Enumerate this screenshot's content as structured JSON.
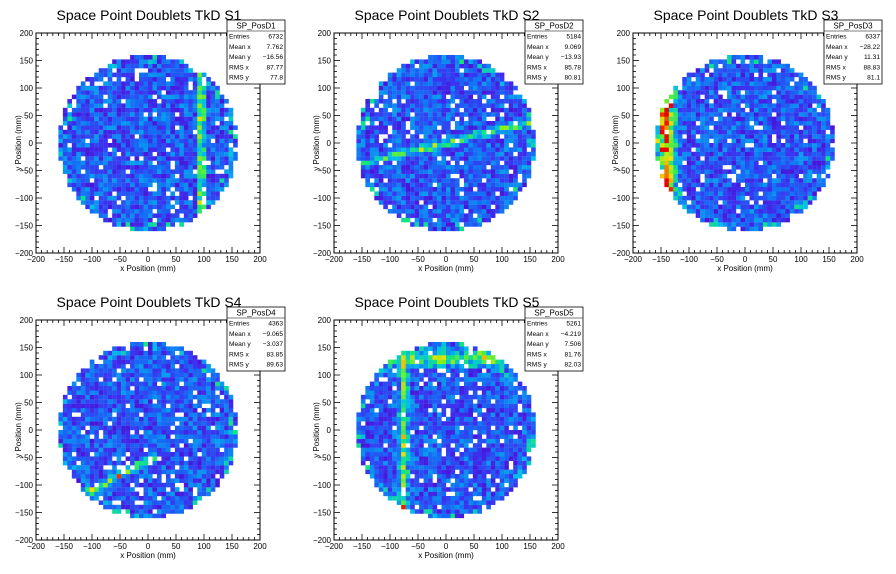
{
  "chart_data": [
    {
      "type": "heatmap",
      "title": "Space Point Doublets TkD S1",
      "xlabel": "x Position (mm)",
      "ylabel": "y Position (mm)",
      "xlim": [
        -200,
        200
      ],
      "ylim": [
        -200,
        200
      ],
      "xticks": [
        "−200",
        "−150",
        "−100",
        "−50",
        "0",
        "50",
        "100",
        "150",
        "200"
      ],
      "yticks": [
        "−200",
        "−150",
        "−100",
        "−50",
        "0",
        "50",
        "100",
        "150",
        "200"
      ],
      "region_radius": 160,
      "stats": {
        "name": "SP_PosD1",
        "rows": [
          {
            "label": "Entries",
            "value": "6732"
          },
          {
            "label": "Mean x",
            "value": "7.762"
          },
          {
            "label": "Mean y",
            "value": "−16.56"
          },
          {
            "label": "RMS x",
            "value": "87.77"
          },
          {
            "label": "RMS y",
            "value": "77.8"
          }
        ]
      },
      "features": [
        {
          "kind": "band",
          "axis": "x",
          "center": 95,
          "width": 10,
          "level": 0.62
        }
      ]
    },
    {
      "type": "heatmap",
      "title": "Space Point Doublets TkD S2",
      "xlabel": "x Position (mm)",
      "ylabel": "y Position (mm)",
      "xlim": [
        -200,
        200
      ],
      "ylim": [
        -200,
        200
      ],
      "xticks": [
        "−200",
        "−150",
        "−100",
        "−50",
        "0",
        "50",
        "100",
        "150",
        "200"
      ],
      "yticks": [
        "−200",
        "−150",
        "−100",
        "−50",
        "0",
        "50",
        "100",
        "150",
        "200"
      ],
      "region_radius": 160,
      "stats": {
        "name": "SP_PosD2",
        "rows": [
          {
            "label": "Entries",
            "value": "5184"
          },
          {
            "label": "Mean x",
            "value": "9.069"
          },
          {
            "label": "Mean y",
            "value": "−13.93"
          },
          {
            "label": "RMS x",
            "value": "85.78"
          },
          {
            "label": "RMS y",
            "value": "80.81"
          }
        ]
      },
      "features": [
        {
          "kind": "line",
          "x1": -160,
          "y1": -40,
          "x2": 160,
          "y2": 40,
          "width": 10,
          "level": 0.5
        }
      ]
    },
    {
      "type": "heatmap",
      "title": "Space Point Doublets TkD S3",
      "xlabel": "x Position (mm)",
      "ylabel": "y Position (mm)",
      "xlim": [
        -200,
        200
      ],
      "ylim": [
        -200,
        200
      ],
      "xticks": [
        "−200",
        "−150",
        "−100",
        "−50",
        "0",
        "50",
        "100",
        "150",
        "200"
      ],
      "yticks": [
        "−200",
        "−150",
        "−100",
        "−50",
        "0",
        "50",
        "100",
        "150",
        "200"
      ],
      "region_radius": 160,
      "stats": {
        "name": "SP_PosD3",
        "rows": [
          {
            "label": "Entries",
            "value": "6337"
          },
          {
            "label": "Mean x",
            "value": "−28.22"
          },
          {
            "label": "Mean y",
            "value": "11.31"
          },
          {
            "label": "RMS x",
            "value": "88.83"
          },
          {
            "label": "RMS y",
            "value": "81.1"
          }
        ]
      },
      "features": [
        {
          "kind": "band",
          "axis": "x",
          "center": -140,
          "width": 26,
          "level": 0.7
        }
      ]
    },
    {
      "type": "heatmap",
      "title": "Space Point Doublets TkD S4",
      "xlabel": "x Position (mm)",
      "ylabel": "y Position (mm)",
      "xlim": [
        -200,
        200
      ],
      "ylim": [
        -200,
        200
      ],
      "xticks": [
        "−200",
        "−150",
        "−100",
        "−50",
        "0",
        "50",
        "100",
        "150",
        "200"
      ],
      "yticks": [
        "−200",
        "−150",
        "−100",
        "−50",
        "0",
        "50",
        "100",
        "150",
        "200"
      ],
      "region_radius": 160,
      "stats": {
        "name": "SP_PosD4",
        "rows": [
          {
            "label": "Entries",
            "value": "4363"
          },
          {
            "label": "Mean x",
            "value": "−9.065"
          },
          {
            "label": "Mean y",
            "value": "−3.037"
          },
          {
            "label": "RMS x",
            "value": "83.85"
          },
          {
            "label": "RMS y",
            "value": "89.63"
          }
        ]
      },
      "features": [
        {
          "kind": "line",
          "x1": -100,
          "y1": -110,
          "x2": 10,
          "y2": -50,
          "width": 10,
          "level": 0.6
        }
      ]
    },
    {
      "type": "heatmap",
      "title": "Space Point Doublets TkD S5",
      "xlabel": "x Position (mm)",
      "ylabel": "y Position (mm)",
      "xlim": [
        -200,
        200
      ],
      "ylim": [
        -200,
        200
      ],
      "xticks": [
        "−200",
        "−150",
        "−100",
        "−50",
        "0",
        "50",
        "100",
        "150",
        "200"
      ],
      "yticks": [
        "−200",
        "−150",
        "−100",
        "−50",
        "0",
        "50",
        "100",
        "150",
        "200"
      ],
      "region_radius": 160,
      "stats": {
        "name": "SP_PosD5",
        "rows": [
          {
            "label": "Entries",
            "value": "5261"
          },
          {
            "label": "Mean x",
            "value": "−4.219"
          },
          {
            "label": "Mean y",
            "value": "7.506"
          },
          {
            "label": "RMS x",
            "value": "81.76"
          },
          {
            "label": "RMS y",
            "value": "82.03"
          }
        ]
      },
      "features": [
        {
          "kind": "band",
          "axis": "x",
          "center": -75,
          "width": 12,
          "level": 0.55
        },
        {
          "kind": "band",
          "axis": "y",
          "center": 130,
          "width": 22,
          "level": 0.5
        }
      ]
    }
  ]
}
